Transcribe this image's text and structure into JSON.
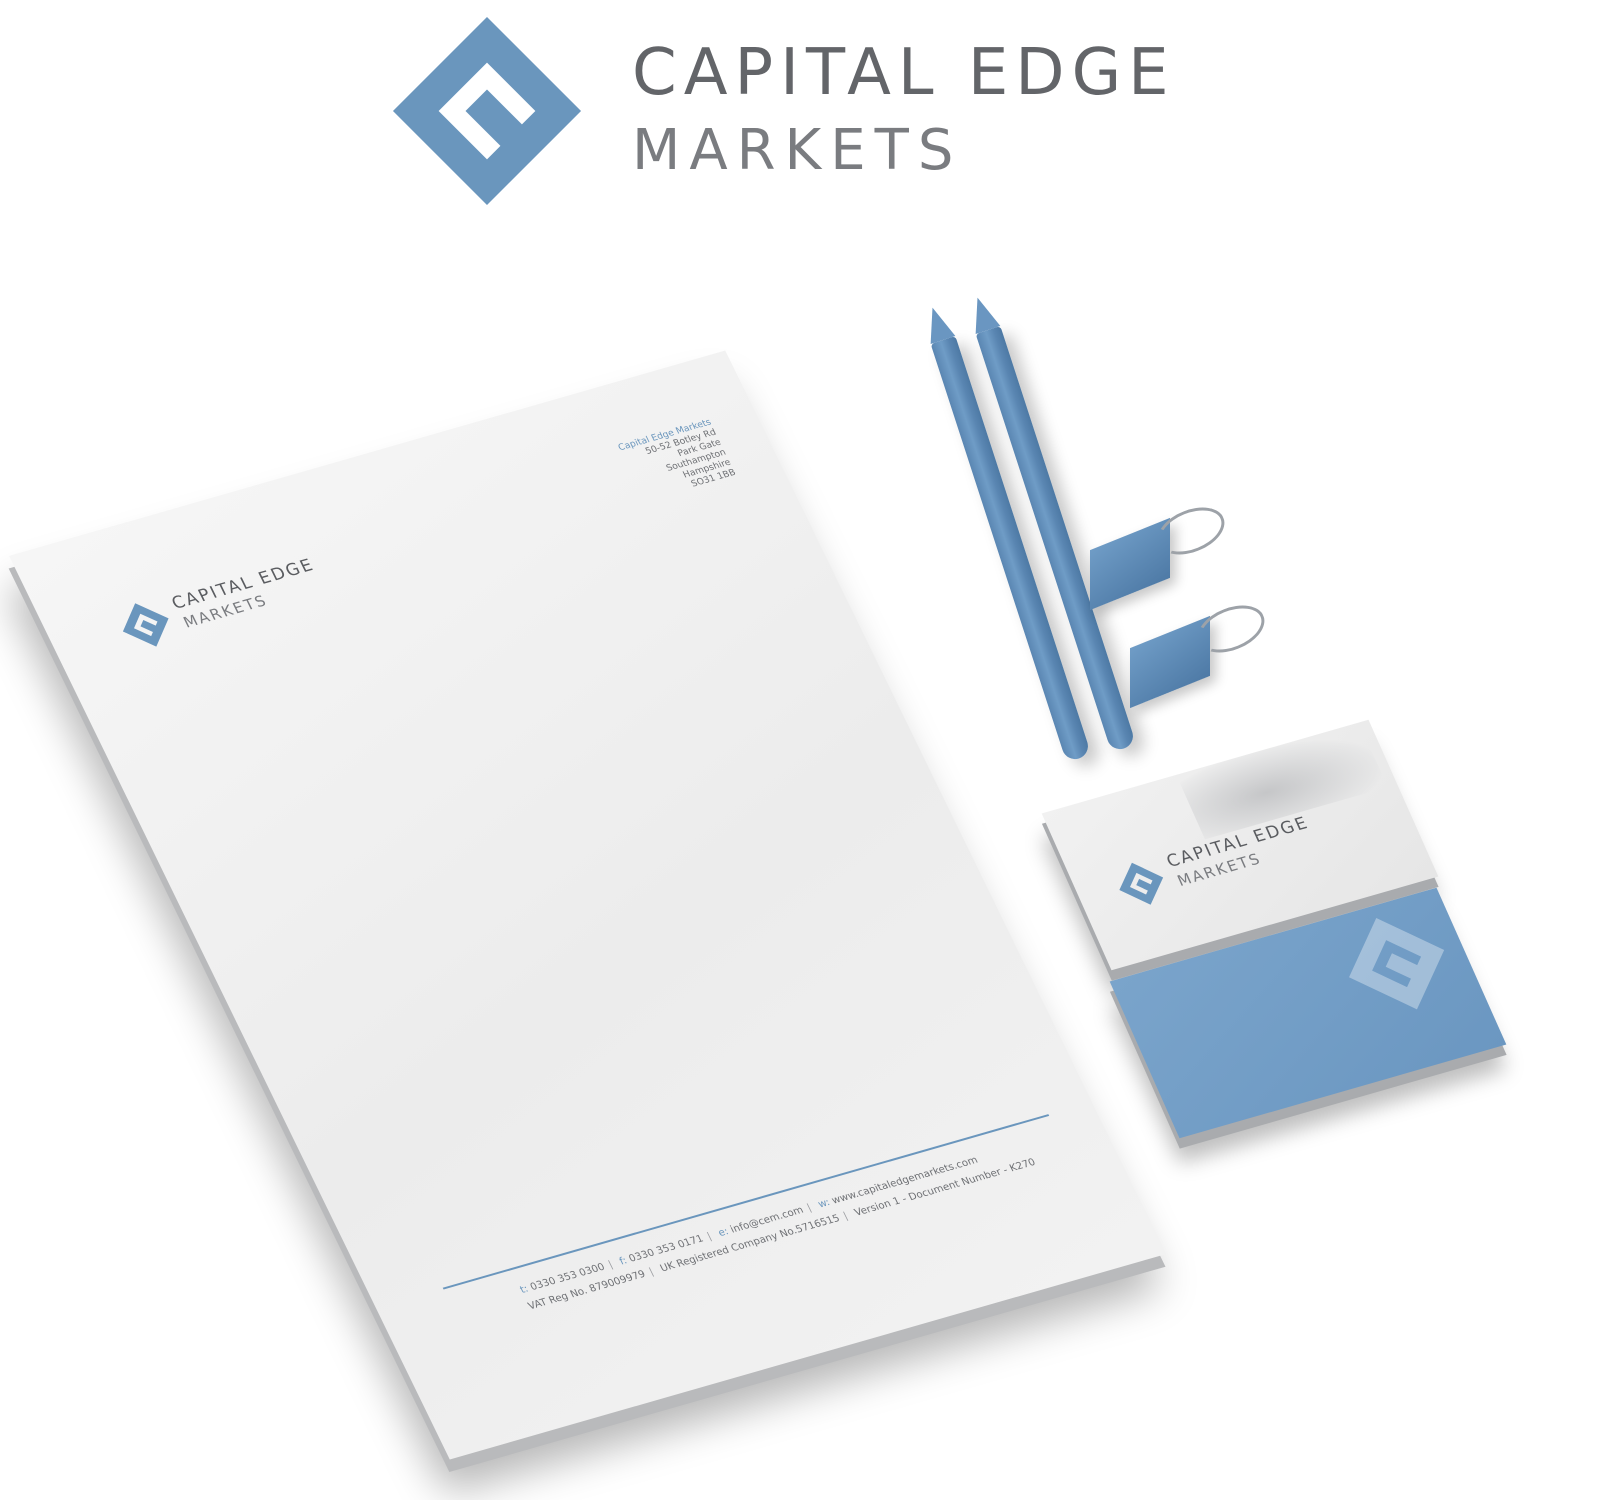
{
  "colors": {
    "brand_blue": "#6a96bd",
    "text_gray": "#636569"
  },
  "logo": {
    "line1": "CAPITAL EDGE",
    "line2": "MARKETS",
    "icon": "capital-edge-diamond-icon"
  },
  "letterhead": {
    "address": {
      "company": "Capital Edge Markets",
      "line1": "50-52 Botley Rd",
      "line2": "Park Gate",
      "line3": "Southampton",
      "line4": "Hampshire",
      "line5": "SO31 1BB"
    },
    "footer": {
      "t_key": "t:",
      "t_val": "0330 353 0300",
      "f_key": "f:",
      "f_val": "0330 353 0171",
      "e_key": "e:",
      "e_val": "info@cem.com",
      "w_key": "w:",
      "w_val": "www.capitaledgemarkets.com",
      "vat": "VAT Reg No. 879009979",
      "company_no": "UK Registered Company No.5716515",
      "version": "Version 1 - Document Number - K270"
    }
  },
  "items": {
    "pencil_icon": "pencil-icon",
    "binder_clip_icon": "binder-clip-icon"
  }
}
